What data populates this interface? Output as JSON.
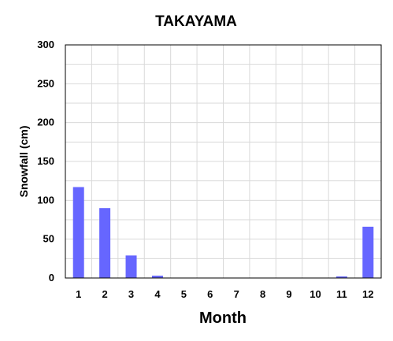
{
  "chart_data": {
    "type": "bar",
    "title": "TAKAYAMA",
    "xlabel": "Month",
    "ylabel": "Snowfall (cm)",
    "categories": [
      "1",
      "2",
      "3",
      "4",
      "5",
      "6",
      "7",
      "8",
      "9",
      "10",
      "11",
      "12"
    ],
    "values": [
      117,
      90,
      29,
      3,
      0,
      0,
      0,
      0,
      0,
      0,
      2,
      66
    ],
    "ylim": [
      0,
      300
    ],
    "yticks": [
      0,
      50,
      100,
      150,
      200,
      250,
      300
    ],
    "grid": true,
    "legend": "none",
    "colors": {
      "bar": "#6666ff",
      "grid": "#d9d9d9",
      "axis": "#000000"
    }
  }
}
